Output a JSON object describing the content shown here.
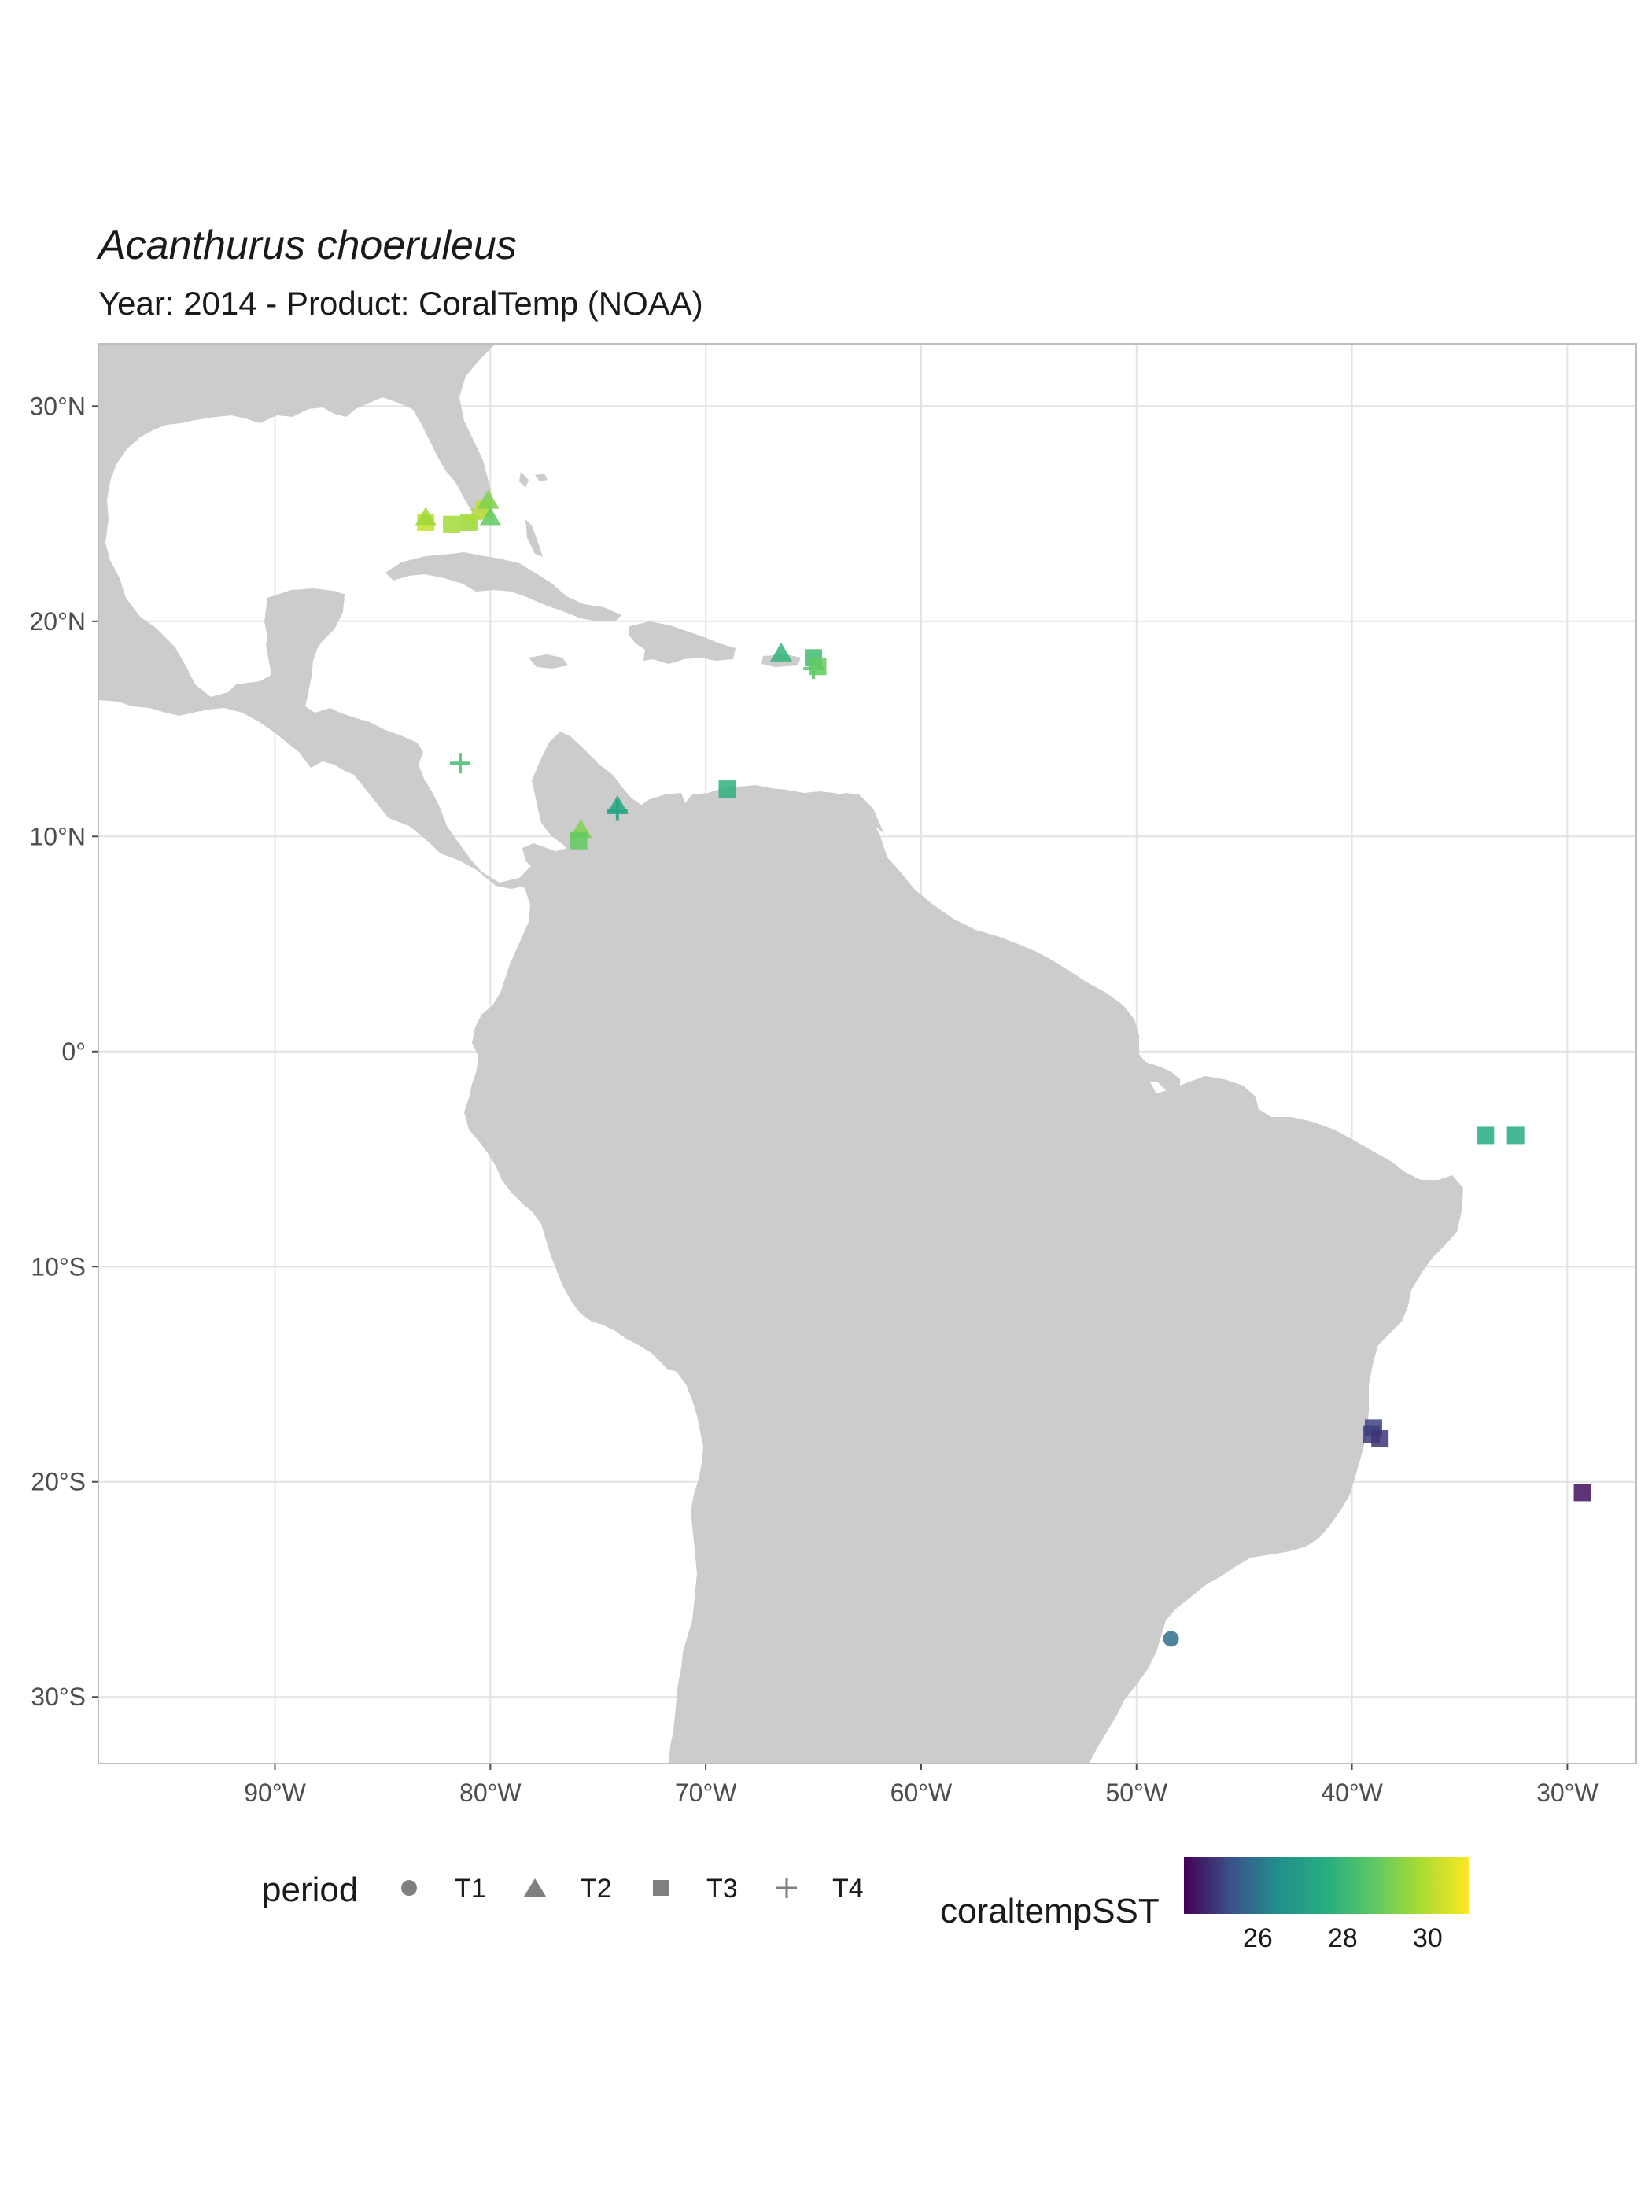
{
  "title": "Acanthurus choeruleus",
  "subtitle": "Year: 2014 - Product: CoralTemp (NOAA)",
  "colors": {
    "land": "#cccccc",
    "grid": "#e3e3e3",
    "panel_border": "#bdbdbd",
    "legend_shape": "#7f7f7f",
    "viridis": [
      "#440154",
      "#3b528b",
      "#21908c",
      "#27ad81",
      "#5dc863",
      "#aadc32",
      "#fde725"
    ]
  },
  "map": {
    "x_ticks": [
      {
        "lon": -90,
        "label": "90°W"
      },
      {
        "lon": -80,
        "label": "80°W"
      },
      {
        "lon": -70,
        "label": "70°W"
      },
      {
        "lon": -60,
        "label": "60°W"
      },
      {
        "lon": -50,
        "label": "50°W"
      },
      {
        "lon": -40,
        "label": "40°W"
      },
      {
        "lon": -30,
        "label": "30°W"
      }
    ],
    "y_ticks": [
      {
        "lat": 30,
        "label": "30°N"
      },
      {
        "lat": 20,
        "label": "20°N"
      },
      {
        "lat": 10,
        "label": "10°N"
      },
      {
        "lat": 0,
        "label": "0°"
      },
      {
        "lat": -10,
        "label": "10°S"
      },
      {
        "lat": -20,
        "label": "20°S"
      },
      {
        "lat": -30,
        "label": "30°S"
      }
    ],
    "lon_range": [
      -98.2,
      -26.8
    ],
    "lat_range": [
      -33.1,
      32.9
    ]
  },
  "chart_data": {
    "type": "scatter",
    "color_scale": {
      "name": "coraltempSST",
      "range": [
        24.6,
        31.1
      ],
      "ticks": [
        26,
        28,
        30
      ]
    },
    "points": [
      {
        "lon": -83.0,
        "lat": 24.6,
        "period": "T3",
        "sst": 30.4
      },
      {
        "lon": -83.0,
        "lat": 24.8,
        "period": "T2",
        "sst": 29.8
      },
      {
        "lon": -81.8,
        "lat": 24.5,
        "period": "T3",
        "sst": 29.9
      },
      {
        "lon": -81.0,
        "lat": 24.6,
        "period": "T3",
        "sst": 29.8
      },
      {
        "lon": -80.8,
        "lat": 24.8,
        "period": "T4",
        "sst": 30.0
      },
      {
        "lon": -80.3,
        "lat": 25.2,
        "period": "T3",
        "sst": 30.2
      },
      {
        "lon": -80.1,
        "lat": 25.6,
        "period": "T2",
        "sst": 29.4
      },
      {
        "lon": -80.0,
        "lat": 24.8,
        "period": "T2",
        "sst": 29.0
      },
      {
        "lon": -66.5,
        "lat": 18.5,
        "period": "T2",
        "sst": 28.1
      },
      {
        "lon": -65.0,
        "lat": 18.3,
        "period": "T3",
        "sst": 28.4
      },
      {
        "lon": -65.0,
        "lat": 17.8,
        "period": "T4",
        "sst": 28.8
      },
      {
        "lon": -64.8,
        "lat": 17.9,
        "period": "T3",
        "sst": 29.0
      },
      {
        "lon": -81.4,
        "lat": 13.4,
        "period": "T4",
        "sst": 28.5
      },
      {
        "lon": -69.0,
        "lat": 12.2,
        "period": "T3",
        "sst": 28.0
      },
      {
        "lon": -74.1,
        "lat": 11.4,
        "period": "T2",
        "sst": 27.6
      },
      {
        "lon": -74.1,
        "lat": 11.2,
        "period": "T4",
        "sst": 27.5
      },
      {
        "lon": -75.8,
        "lat": 10.3,
        "period": "T2",
        "sst": 29.4
      },
      {
        "lon": -75.9,
        "lat": 9.8,
        "period": "T3",
        "sst": 29.0
      },
      {
        "lon": -33.8,
        "lat": -3.9,
        "period": "T3",
        "sst": 27.8
      },
      {
        "lon": -32.4,
        "lat": -3.9,
        "period": "T3",
        "sst": 27.7
      },
      {
        "lon": -39.0,
        "lat": -17.5,
        "period": "T3",
        "sst": 25.5
      },
      {
        "lon": -39.1,
        "lat": -17.8,
        "period": "T3",
        "sst": 25.4
      },
      {
        "lon": -38.7,
        "lat": -18.0,
        "period": "T3",
        "sst": 25.3
      },
      {
        "lon": -29.3,
        "lat": -20.5,
        "period": "T3",
        "sst": 24.8
      },
      {
        "lon": -48.4,
        "lat": -27.3,
        "period": "T1",
        "sst": 26.2
      }
    ]
  },
  "legend": {
    "shape_title": "period",
    "shape_items": [
      {
        "label": "T1",
        "shape": "circle"
      },
      {
        "label": "T2",
        "shape": "triangle"
      },
      {
        "label": "T3",
        "shape": "square"
      },
      {
        "label": "T4",
        "shape": "plus"
      }
    ],
    "color_title": "coraltempSST",
    "color_ticks": [
      "26",
      "28",
      "30"
    ]
  }
}
